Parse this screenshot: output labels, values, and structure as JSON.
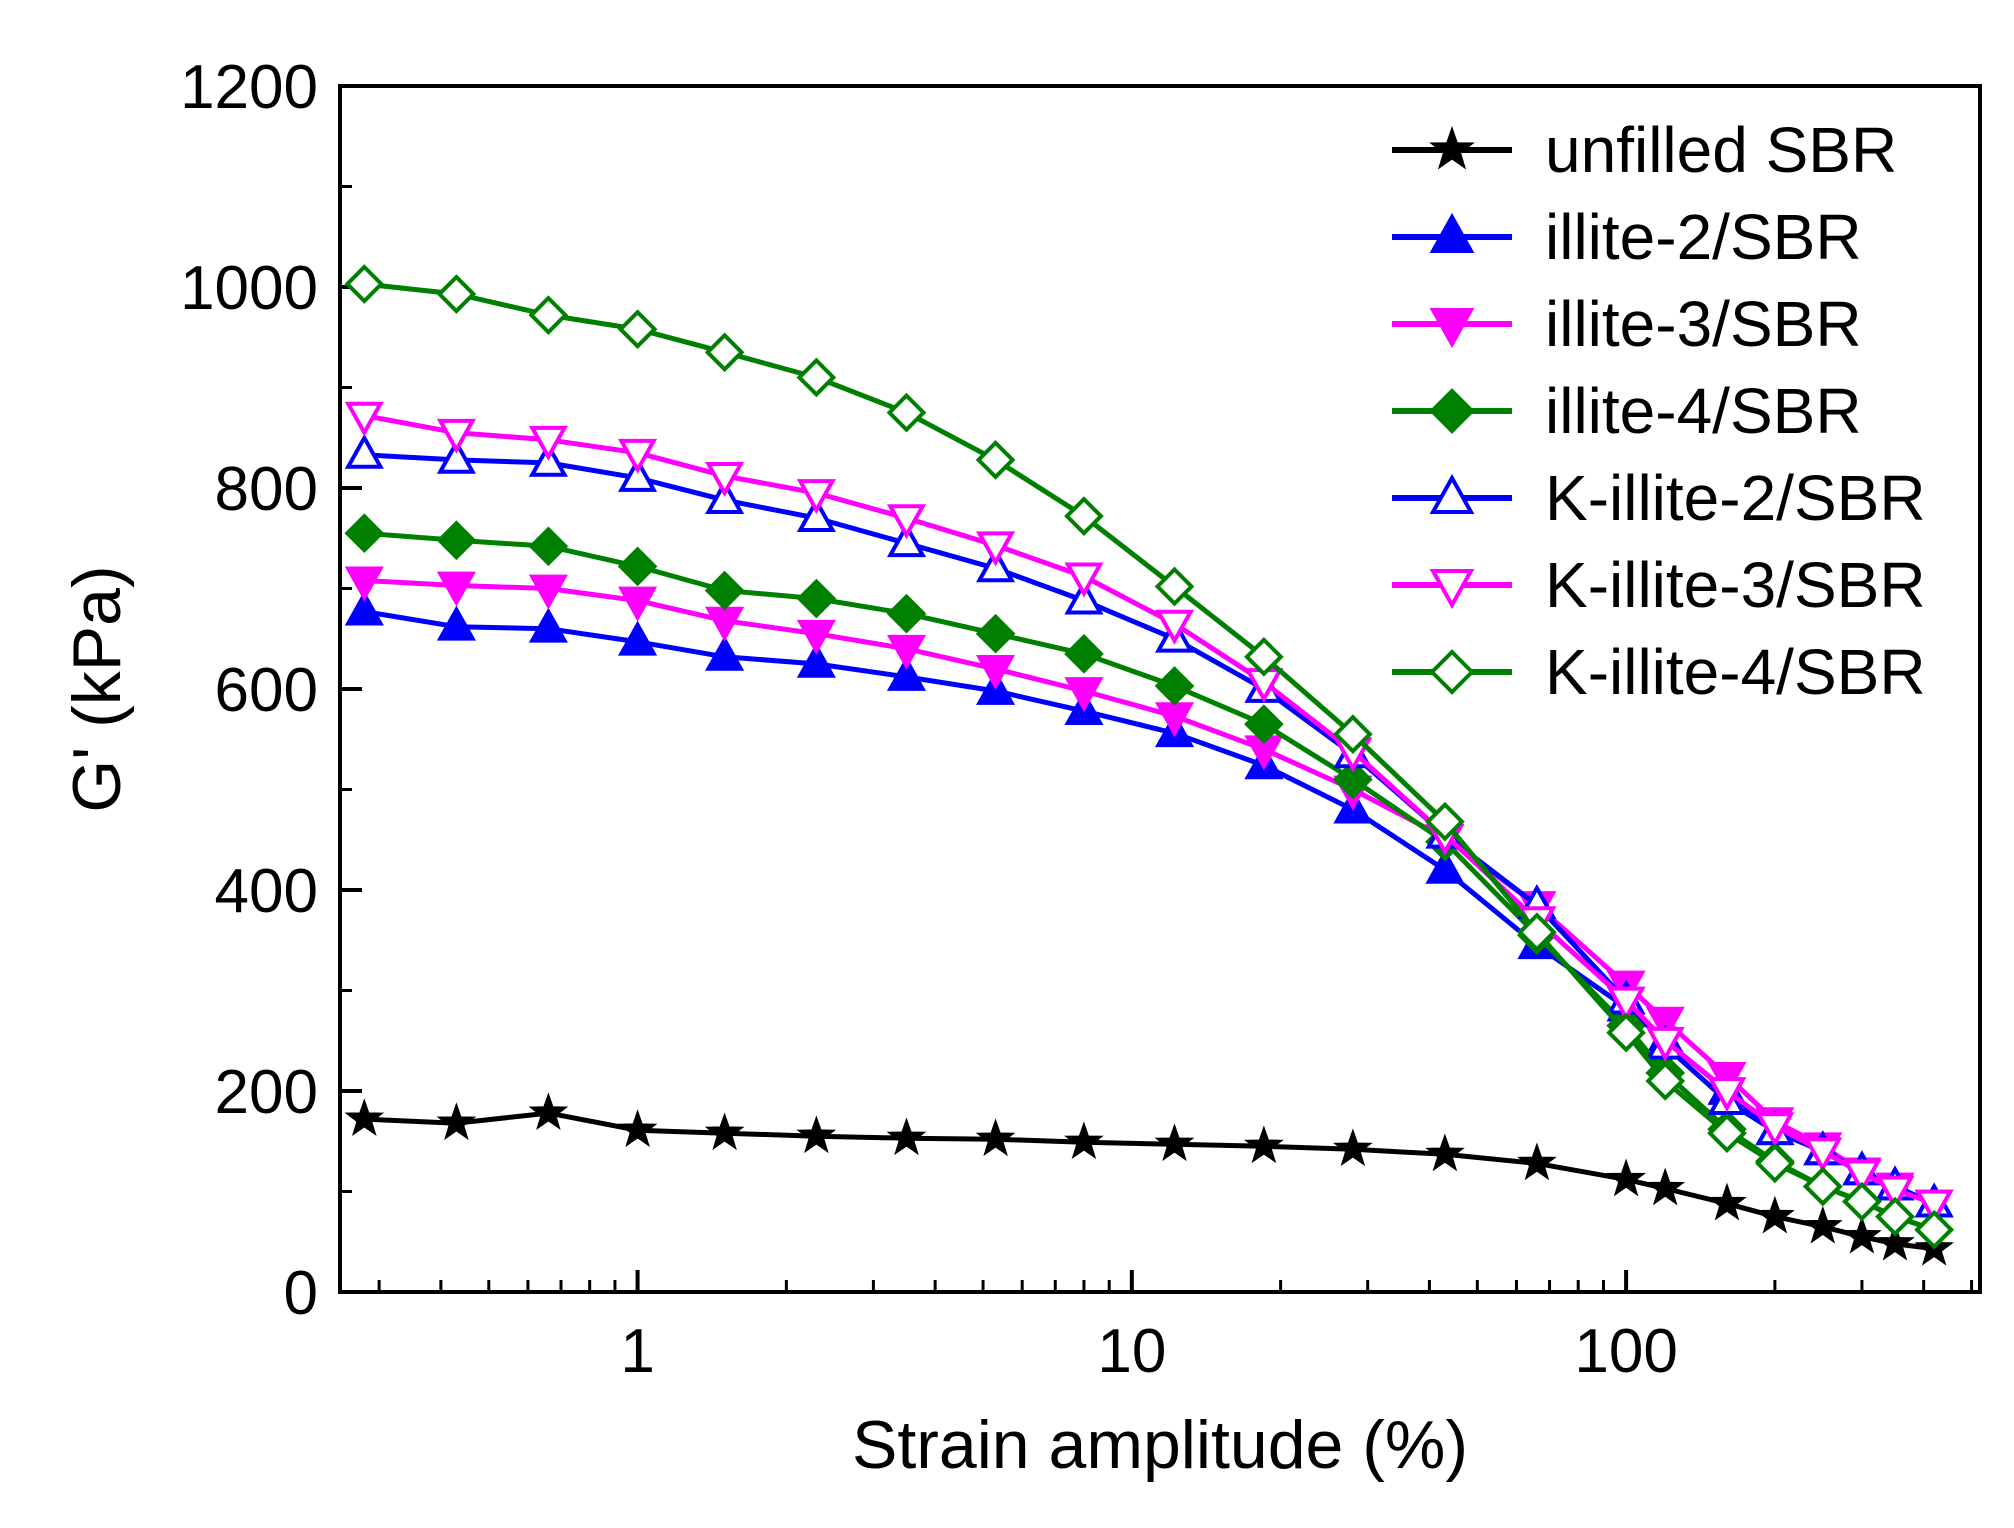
{
  "chart_data": {
    "type": "line",
    "xlabel": "Strain amplitude (%)",
    "ylabel": "G' (kPa)",
    "xscale": "log",
    "xlim": [
      0.25,
      520
    ],
    "ylim": [
      0,
      1200
    ],
    "xticks": [
      1,
      10,
      100
    ],
    "xtick_labels": [
      "1",
      "10",
      "100"
    ],
    "yticks": [
      0,
      200,
      400,
      600,
      800,
      1000,
      1200
    ],
    "ytick_labels": [
      "0",
      "200",
      "400",
      "600",
      "800",
      "1000",
      "1200"
    ],
    "grid": false,
    "legend_position": "top-right",
    "x": [
      0.28,
      0.43,
      0.66,
      1.0,
      1.5,
      2.3,
      3.5,
      5.3,
      8.0,
      12.2,
      18.5,
      28,
      43,
      66,
      100,
      120,
      160,
      200,
      250,
      300,
      350,
      420
    ],
    "series": [
      {
        "name": "unfilled SBR",
        "color": "#000000",
        "marker": "star",
        "filled": true,
        "values": [
          172,
          168,
          178,
          161,
          158,
          155,
          153,
          152,
          149,
          147,
          145,
          142,
          137,
          128,
          112,
          103,
          88,
          75,
          65,
          55,
          48,
          43
        ]
      },
      {
        "name": "illite-2/SBR",
        "color": "#0000ff",
        "marker": "triangle-up",
        "filled": true,
        "values": [
          677,
          662,
          660,
          647,
          632,
          625,
          612,
          598,
          578,
          556,
          524,
          480,
          420,
          345,
          283,
          250,
          200,
          160,
          140,
          120,
          105,
          88
        ]
      },
      {
        "name": "illite-3/SBR",
        "color": "#ff00ff",
        "marker": "triangle-down",
        "filled": true,
        "values": [
          708,
          703,
          700,
          688,
          668,
          655,
          640,
          620,
          598,
          573,
          540,
          500,
          452,
          385,
          306,
          270,
          215,
          170,
          145,
          120,
          105,
          88
        ]
      },
      {
        "name": "illite-4/SBR",
        "color": "#008000",
        "marker": "diamond",
        "filled": true,
        "values": [
          755,
          748,
          742,
          722,
          698,
          690,
          675,
          655,
          635,
          603,
          565,
          510,
          448,
          355,
          265,
          218,
          162,
          130,
          105,
          90,
          75,
          62
        ]
      },
      {
        "name": "K-illite-2/SBR",
        "color": "#0000ff",
        "marker": "triangle-up",
        "filled": false,
        "values": [
          833,
          828,
          825,
          810,
          788,
          770,
          745,
          720,
          688,
          650,
          600,
          535,
          455,
          385,
          290,
          245,
          190,
          160,
          140,
          120,
          105,
          88
        ]
      },
      {
        "name": "K-illite-3/SBR",
        "color": "#ff00ff",
        "marker": "triangle-down",
        "filled": false,
        "values": [
          872,
          855,
          848,
          835,
          812,
          795,
          770,
          743,
          712,
          665,
          607,
          538,
          455,
          370,
          290,
          250,
          200,
          165,
          140,
          118,
          102,
          88
        ]
      },
      {
        "name": "K-illite-4/SBR",
        "color": "#008000",
        "marker": "diamond",
        "filled": false,
        "values": [
          1003,
          993,
          972,
          958,
          935,
          910,
          875,
          828,
          772,
          702,
          632,
          555,
          468,
          358,
          258,
          210,
          158,
          128,
          105,
          90,
          75,
          62
        ]
      }
    ]
  }
}
